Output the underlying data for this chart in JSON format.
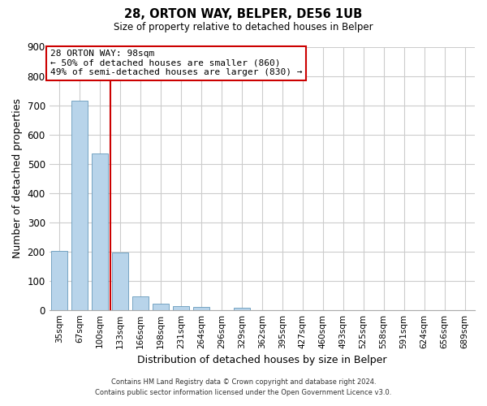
{
  "title": "28, ORTON WAY, BELPER, DE56 1UB",
  "subtitle": "Size of property relative to detached houses in Belper",
  "xlabel": "Distribution of detached houses by size in Belper",
  "ylabel": "Number of detached properties",
  "footer_lines": [
    "Contains HM Land Registry data © Crown copyright and database right 2024.",
    "Contains public sector information licensed under the Open Government Licence v3.0."
  ],
  "bins": [
    "35sqm",
    "67sqm",
    "100sqm",
    "133sqm",
    "166sqm",
    "198sqm",
    "231sqm",
    "264sqm",
    "296sqm",
    "329sqm",
    "362sqm",
    "395sqm",
    "427sqm",
    "460sqm",
    "493sqm",
    "525sqm",
    "558sqm",
    "591sqm",
    "624sqm",
    "656sqm",
    "689sqm"
  ],
  "values": [
    203,
    715,
    535,
    195,
    47,
    22,
    13,
    10,
    0,
    8,
    0,
    0,
    0,
    0,
    0,
    0,
    0,
    0,
    0,
    0,
    0
  ],
  "property_bin_index": 2,
  "property_label": "28 ORTON WAY: 98sqm",
  "annotation_line1": "← 50% of detached houses are smaller (860)",
  "annotation_line2": "49% of semi-detached houses are larger (830) →",
  "bar_color": "#b8d4ea",
  "bar_edge_color": "#6699bb",
  "highlight_line_color": "#cc0000",
  "annotation_box_color": "#ffffff",
  "annotation_box_edgecolor": "#cc0000",
  "ylim": [
    0,
    900
  ],
  "yticks": [
    0,
    100,
    200,
    300,
    400,
    500,
    600,
    700,
    800,
    900
  ],
  "grid_color": "#cccccc",
  "background_color": "#ffffff"
}
